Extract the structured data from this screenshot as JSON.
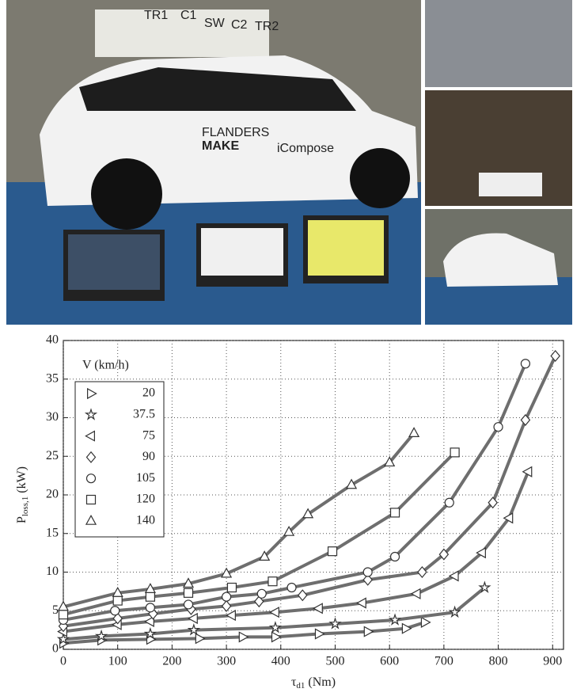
{
  "photos": {
    "cabinet_labels": [
      "TR1",
      "C1",
      "SW",
      "C2",
      "TR2"
    ],
    "logos": [
      "FLANDERS",
      "MAKE",
      "iCompose"
    ]
  },
  "chart_data": {
    "type": "line",
    "x_label": {
      "symbol": "τ",
      "sub": "d1",
      "unit": " (Nm)"
    },
    "y_label": {
      "symbol": "P",
      "sub": "loss,1",
      "unit": " (kW)"
    },
    "legend_title": "V (km/h)",
    "xlim": [
      0,
      920
    ],
    "xticks": [
      0,
      100,
      200,
      300,
      400,
      500,
      600,
      700,
      800,
      900
    ],
    "ylim": [
      0,
      40
    ],
    "yticks": [
      0,
      5,
      10,
      15,
      20,
      25,
      30,
      35,
      40
    ],
    "grid": true,
    "legend_position": "upper-left",
    "color": "#6e6e6e",
    "series": [
      {
        "name": "20",
        "marker": "triangle-right",
        "x": [
          0,
          70,
          160,
          250,
          330,
          390,
          470,
          560,
          630,
          665
        ],
        "values": [
          0.8,
          1.2,
          1.3,
          1.4,
          1.6,
          1.6,
          2.0,
          2.3,
          2.7,
          3.5
        ]
      },
      {
        "name": "37.5",
        "marker": "star",
        "x": [
          0,
          70,
          160,
          240,
          390,
          500,
          610,
          720,
          775
        ],
        "values": [
          1.3,
          1.7,
          2.0,
          2.5,
          2.8,
          3.3,
          3.8,
          4.8,
          8
        ]
      },
      {
        "name": "75",
        "marker": "triangle-left",
        "x": [
          0,
          100,
          160,
          240,
          310,
          390,
          470,
          550,
          650,
          720,
          770,
          820,
          855
        ],
        "values": [
          2.3,
          3.2,
          3.6,
          4.0,
          4.4,
          4.8,
          5.3,
          6.0,
          7.2,
          9.5,
          12.5,
          17,
          23
        ]
      },
      {
        "name": "90",
        "marker": "diamond",
        "x": [
          0,
          100,
          165,
          235,
          300,
          360,
          440,
          560,
          660,
          700,
          790,
          850,
          905
        ],
        "values": [
          3,
          4,
          4.6,
          5.2,
          5.6,
          6.2,
          7,
          9,
          10,
          12.3,
          19,
          29.7,
          38
        ]
      },
      {
        "name": "105",
        "marker": "circle",
        "x": [
          0,
          95,
          160,
          230,
          300,
          365,
          420,
          560,
          610,
          710,
          800,
          850
        ],
        "values": [
          3.8,
          5,
          5.4,
          5.8,
          6.8,
          7.2,
          8,
          10,
          12,
          19,
          28.8,
          37
        ]
      },
      {
        "name": "120",
        "marker": "square",
        "x": [
          0,
          100,
          160,
          230,
          310,
          385,
          495,
          610,
          720
        ],
        "values": [
          4.5,
          6.3,
          6.8,
          7.3,
          8,
          8.8,
          12.7,
          17.7,
          25.5
        ]
      },
      {
        "name": "140",
        "marker": "triangle-up",
        "x": [
          0,
          100,
          160,
          230,
          300,
          370,
          415,
          450,
          530,
          600,
          645
        ],
        "values": [
          5.5,
          7.3,
          7.8,
          8.5,
          9.8,
          12,
          15.2,
          17.5,
          21.3,
          24.2,
          28
        ]
      }
    ]
  }
}
